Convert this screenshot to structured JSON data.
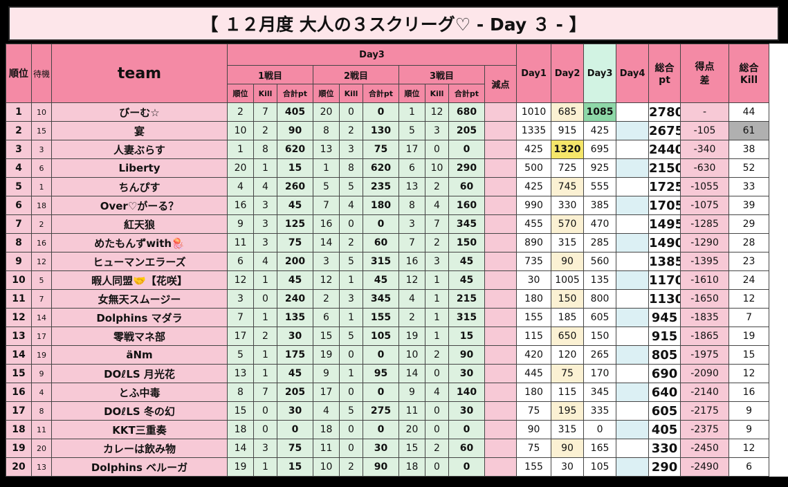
{
  "title": "【 １２月度 大人の３スクリーグ♡ - Day ３ - 】",
  "headers": {
    "rank": "順位",
    "wait": "待機",
    "team": "team",
    "day3": "Day3",
    "match1": "1戦目",
    "match2": "2戦目",
    "match3": "3戦目",
    "penalty": "減点",
    "day1": "Day1",
    "day2": "Day2",
    "day3col": "Day3",
    "day4": "Day4",
    "total_pt": "総合\npt",
    "total_pt_line1": "総合",
    "total_pt_line2": "pt",
    "diff_line1": "得点",
    "diff_line2": "差",
    "kill_line1": "総合",
    "kill_line2": "Kill",
    "sub_rank": "順位",
    "sub_kill": "Kill",
    "sub_pt": "合計pt"
  },
  "rows": [
    {
      "rank": "1",
      "wait": "10",
      "team": "びーむ☆",
      "m1": [
        "2",
        "7",
        "405"
      ],
      "m2": [
        "20",
        "0",
        "0"
      ],
      "m3": [
        "1",
        "12",
        "680"
      ],
      "pen": "",
      "d1": "1010",
      "d2": "685",
      "d3": "1085",
      "d4": "",
      "total": "2780",
      "diff": "-",
      "kill": "44"
    },
    {
      "rank": "2",
      "wait": "15",
      "team": "宴",
      "m1": [
        "10",
        "2",
        "90"
      ],
      "m2": [
        "8",
        "2",
        "130"
      ],
      "m3": [
        "5",
        "3",
        "205"
      ],
      "pen": "",
      "d1": "1335",
      "d2": "915",
      "d3": "425",
      "d4": "",
      "total": "2675",
      "diff": "-105",
      "kill": "61"
    },
    {
      "rank": "3",
      "wait": "3",
      "team": "人妻ぶらす",
      "m1": [
        "1",
        "8",
        "620"
      ],
      "m2": [
        "13",
        "3",
        "75"
      ],
      "m3": [
        "17",
        "0",
        "0"
      ],
      "pen": "",
      "d1": "425",
      "d2": "1320",
      "d3": "695",
      "d4": "",
      "total": "2440",
      "diff": "-340",
      "kill": "38"
    },
    {
      "rank": "4",
      "wait": "6",
      "team": "Liberty",
      "m1": [
        "20",
        "1",
        "15"
      ],
      "m2": [
        "1",
        "8",
        "620"
      ],
      "m3": [
        "6",
        "10",
        "290"
      ],
      "pen": "",
      "d1": "500",
      "d2": "725",
      "d3": "925",
      "d4": "",
      "total": "2150",
      "diff": "-630",
      "kill": "52"
    },
    {
      "rank": "5",
      "wait": "1",
      "team": "ちんぴす",
      "m1": [
        "4",
        "4",
        "260"
      ],
      "m2": [
        "5",
        "5",
        "235"
      ],
      "m3": [
        "13",
        "2",
        "60"
      ],
      "pen": "",
      "d1": "425",
      "d2": "745",
      "d3": "555",
      "d4": "",
      "total": "1725",
      "diff": "-1055",
      "kill": "33"
    },
    {
      "rank": "6",
      "wait": "18",
      "team": "Over♡がーる？",
      "m1": [
        "16",
        "3",
        "45"
      ],
      "m2": [
        "7",
        "4",
        "180"
      ],
      "m3": [
        "8",
        "4",
        "160"
      ],
      "pen": "",
      "d1": "990",
      "d2": "330",
      "d3": "385",
      "d4": "",
      "total": "1705",
      "diff": "-1075",
      "kill": "39"
    },
    {
      "rank": "7",
      "wait": "2",
      "team": "紅天狼",
      "m1": [
        "9",
        "3",
        "125"
      ],
      "m2": [
        "16",
        "0",
        "0"
      ],
      "m3": [
        "3",
        "7",
        "345"
      ],
      "pen": "",
      "d1": "455",
      "d2": "570",
      "d3": "470",
      "d4": "",
      "total": "1495",
      "diff": "-1285",
      "kill": "29"
    },
    {
      "rank": "8",
      "wait": "16",
      "team": "めたもんずwith🪼",
      "m1": [
        "11",
        "3",
        "75"
      ],
      "m2": [
        "14",
        "2",
        "60"
      ],
      "m3": [
        "7",
        "2",
        "150"
      ],
      "pen": "",
      "d1": "890",
      "d2": "315",
      "d3": "285",
      "d4": "",
      "total": "1490",
      "diff": "-1290",
      "kill": "28"
    },
    {
      "rank": "9",
      "wait": "12",
      "team": "ヒューマンエラーズ",
      "m1": [
        "6",
        "4",
        "200"
      ],
      "m2": [
        "3",
        "5",
        "315"
      ],
      "m3": [
        "16",
        "3",
        "45"
      ],
      "pen": "",
      "d1": "735",
      "d2": "90",
      "d3": "560",
      "d4": "",
      "total": "1385",
      "diff": "-1395",
      "kill": "23"
    },
    {
      "rank": "10",
      "wait": "5",
      "team": "暇人同盟🤝【花咲】",
      "m1": [
        "12",
        "1",
        "45"
      ],
      "m2": [
        "12",
        "1",
        "45"
      ],
      "m3": [
        "12",
        "1",
        "45"
      ],
      "pen": "",
      "d1": "30",
      "d2": "1005",
      "d3": "135",
      "d4": "",
      "total": "1170",
      "diff": "-1610",
      "kill": "24"
    },
    {
      "rank": "11",
      "wait": "7",
      "team": "女無天スムージー",
      "m1": [
        "3",
        "0",
        "240"
      ],
      "m2": [
        "2",
        "3",
        "345"
      ],
      "m3": [
        "4",
        "1",
        "215"
      ],
      "pen": "",
      "d1": "180",
      "d2": "150",
      "d3": "800",
      "d4": "",
      "total": "1130",
      "diff": "-1650",
      "kill": "12"
    },
    {
      "rank": "12",
      "wait": "14",
      "team": "Dolphins マダラ",
      "m1": [
        "7",
        "1",
        "135"
      ],
      "m2": [
        "6",
        "1",
        "155"
      ],
      "m3": [
        "2",
        "1",
        "315"
      ],
      "pen": "",
      "d1": "155",
      "d2": "185",
      "d3": "605",
      "d4": "",
      "total": "945",
      "diff": "-1835",
      "kill": "7"
    },
    {
      "rank": "13",
      "wait": "17",
      "team": "零戦マネ部",
      "m1": [
        "17",
        "2",
        "30"
      ],
      "m2": [
        "15",
        "5",
        "105"
      ],
      "m3": [
        "19",
        "1",
        "15"
      ],
      "pen": "",
      "d1": "115",
      "d2": "650",
      "d3": "150",
      "d4": "",
      "total": "915",
      "diff": "-1865",
      "kill": "19"
    },
    {
      "rank": "14",
      "wait": "19",
      "team": "äNm",
      "m1": [
        "5",
        "1",
        "175"
      ],
      "m2": [
        "19",
        "0",
        "0"
      ],
      "m3": [
        "10",
        "2",
        "90"
      ],
      "pen": "",
      "d1": "420",
      "d2": "120",
      "d3": "265",
      "d4": "",
      "total": "805",
      "diff": "-1975",
      "kill": "15"
    },
    {
      "rank": "15",
      "wait": "9",
      "team": "DOℓLS 月光花",
      "m1": [
        "13",
        "1",
        "45"
      ],
      "m2": [
        "9",
        "1",
        "95"
      ],
      "m3": [
        "14",
        "0",
        "30"
      ],
      "pen": "",
      "d1": "445",
      "d2": "75",
      "d3": "170",
      "d4": "",
      "total": "690",
      "diff": "-2090",
      "kill": "12"
    },
    {
      "rank": "16",
      "wait": "4",
      "team": "とふ中毒",
      "m1": [
        "8",
        "7",
        "205"
      ],
      "m2": [
        "17",
        "0",
        "0"
      ],
      "m3": [
        "9",
        "4",
        "140"
      ],
      "pen": "",
      "d1": "180",
      "d2": "115",
      "d3": "345",
      "d4": "",
      "total": "640",
      "diff": "-2140",
      "kill": "16"
    },
    {
      "rank": "17",
      "wait": "8",
      "team": "DOℓLS 冬の幻",
      "m1": [
        "15",
        "0",
        "30"
      ],
      "m2": [
        "4",
        "5",
        "275"
      ],
      "m3": [
        "11",
        "0",
        "30"
      ],
      "pen": "",
      "d1": "75",
      "d2": "195",
      "d3": "335",
      "d4": "",
      "total": "605",
      "diff": "-2175",
      "kill": "9"
    },
    {
      "rank": "18",
      "wait": "11",
      "team": "KKT三重奏",
      "m1": [
        "18",
        "0",
        "0"
      ],
      "m2": [
        "18",
        "0",
        "0"
      ],
      "m3": [
        "20",
        "0",
        "0"
      ],
      "pen": "",
      "d1": "90",
      "d2": "315",
      "d3": "0",
      "d4": "",
      "total": "405",
      "diff": "-2375",
      "kill": "9"
    },
    {
      "rank": "19",
      "wait": "20",
      "team": "カレーは飲み物",
      "m1": [
        "14",
        "3",
        "75"
      ],
      "m2": [
        "11",
        "0",
        "30"
      ],
      "m3": [
        "15",
        "2",
        "60"
      ],
      "pen": "",
      "d1": "75",
      "d2": "90",
      "d3": "165",
      "d4": "",
      "total": "330",
      "diff": "-2450",
      "kill": "12"
    },
    {
      "rank": "20",
      "wait": "13",
      "team": "Dolphins ベルーガ",
      "m1": [
        "19",
        "1",
        "15"
      ],
      "m2": [
        "10",
        "2",
        "90"
      ],
      "m3": [
        "18",
        "0",
        "0"
      ],
      "pen": "",
      "d1": "155",
      "d2": "30",
      "d3": "105",
      "d4": "",
      "total": "290",
      "diff": "-2490",
      "kill": "6"
    }
  ],
  "highlights": {
    "day3_top": {
      "row": 1,
      "color": "#8ed8a8"
    },
    "day2_top": {
      "row": 3,
      "color": "#f5e66a"
    },
    "kill_top": {
      "row": 2,
      "color": "#b0b0b0"
    }
  },
  "colors": {
    "header_pink": "#f48aa5",
    "row_pink": "#f7c9d6",
    "title_bg": "#fde6ea",
    "green_cell": "#ddf1e0",
    "day3_header": "#d2f3e3",
    "day2_cell": "#fbf1d3",
    "day4_alt": "#dcf0f4"
  }
}
